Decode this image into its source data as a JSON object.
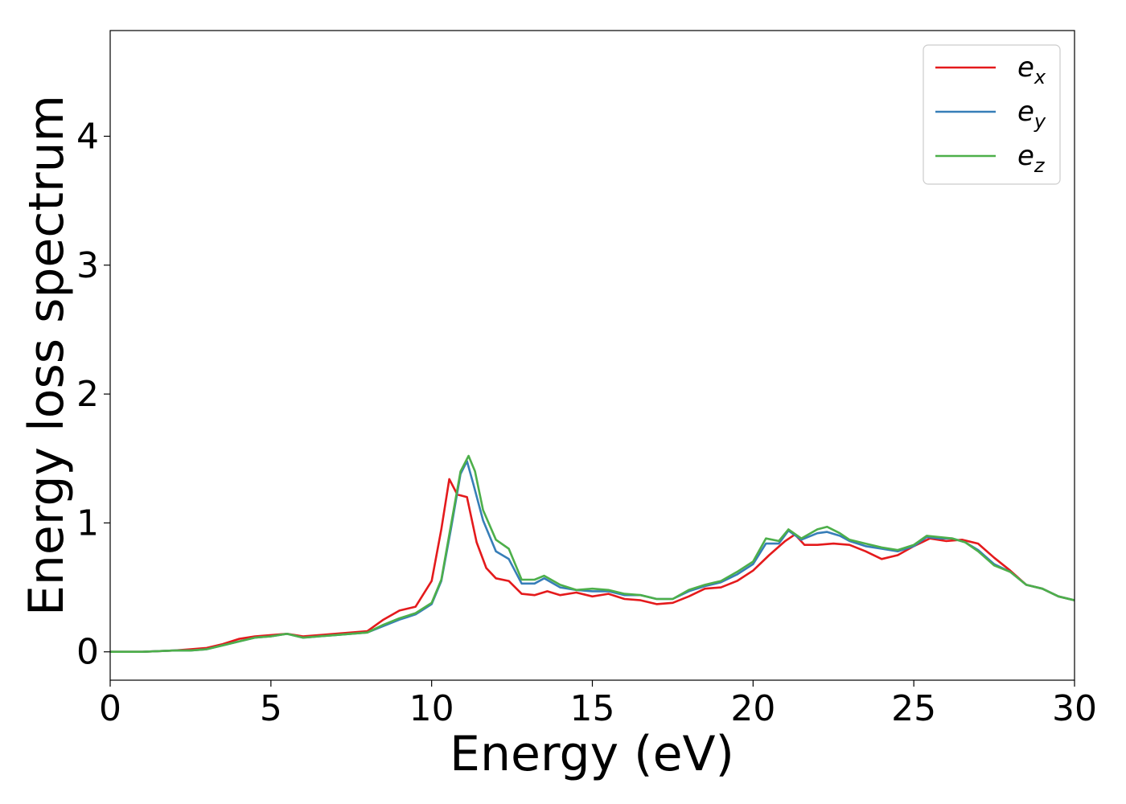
{
  "chart_data": {
    "type": "line",
    "title": "",
    "xlabel": "Energy (eV)",
    "ylabel": "Energy loss spectrum",
    "xlim": [
      0,
      30
    ],
    "ylim": [
      -0.22,
      4.82
    ],
    "xticks": [
      "0",
      "5",
      "10",
      "15",
      "20",
      "25",
      "30"
    ],
    "yticks": [
      "0",
      "1",
      "2",
      "3",
      "4"
    ],
    "grid": false,
    "legend_position": "top-right",
    "series": [
      {
        "name": "e",
        "subscript": "x",
        "color": "#e41a1c",
        "x": [
          0,
          1,
          2,
          2.5,
          3,
          3.5,
          4,
          4.5,
          5,
          5.5,
          6,
          6.5,
          7,
          7.5,
          8,
          8.5,
          9,
          9.5,
          10,
          10.3,
          10.55,
          10.8,
          11.1,
          11.4,
          11.7,
          12,
          12.4,
          12.8,
          13.2,
          13.6,
          14,
          14.5,
          15,
          15.5,
          16,
          16.5,
          17,
          17.5,
          18,
          18.5,
          19,
          19.5,
          20,
          20.5,
          21,
          21.3,
          21.6,
          22,
          22.5,
          23,
          23.5,
          24,
          24.5,
          25,
          25.5,
          26,
          26.5,
          27,
          27.5,
          28,
          28.5,
          29,
          29.5,
          30
        ],
        "y": [
          0,
          0,
          0.01,
          0.02,
          0.03,
          0.06,
          0.1,
          0.12,
          0.13,
          0.14,
          0.12,
          0.13,
          0.14,
          0.15,
          0.16,
          0.25,
          0.32,
          0.35,
          0.55,
          0.95,
          1.34,
          1.22,
          1.2,
          0.85,
          0.65,
          0.57,
          0.55,
          0.45,
          0.44,
          0.47,
          0.44,
          0.46,
          0.43,
          0.45,
          0.41,
          0.4,
          0.37,
          0.38,
          0.43,
          0.49,
          0.5,
          0.55,
          0.63,
          0.75,
          0.86,
          0.91,
          0.83,
          0.83,
          0.84,
          0.83,
          0.78,
          0.72,
          0.75,
          0.82,
          0.88,
          0.86,
          0.87,
          0.84,
          0.73,
          0.63,
          0.52,
          0.49,
          0.43,
          0.4
        ]
      },
      {
        "name": "e",
        "subscript": "y",
        "color": "#377eb8",
        "x": [
          0,
          1,
          2,
          2.5,
          3,
          3.5,
          4,
          4.5,
          5,
          5.5,
          6,
          6.5,
          7,
          7.5,
          8,
          8.5,
          9,
          9.5,
          10,
          10.3,
          10.6,
          10.9,
          11.1,
          11.3,
          11.6,
          12,
          12.4,
          12.8,
          13.2,
          13.5,
          14,
          14.5,
          15,
          15.5,
          16,
          16.5,
          17,
          17.5,
          18,
          18.5,
          19,
          19.5,
          20,
          20.4,
          20.8,
          21.1,
          21.5,
          22,
          22.3,
          22.7,
          23,
          23.5,
          24,
          24.5,
          25,
          25.4,
          25.8,
          26.2,
          26.6,
          27,
          27.5,
          28,
          28.5,
          29,
          29.5,
          30
        ],
        "y": [
          0,
          0,
          0.01,
          0.01,
          0.02,
          0.05,
          0.08,
          0.11,
          0.12,
          0.14,
          0.11,
          0.12,
          0.13,
          0.14,
          0.15,
          0.2,
          0.25,
          0.29,
          0.37,
          0.55,
          0.95,
          1.38,
          1.48,
          1.3,
          1.02,
          0.78,
          0.72,
          0.53,
          0.53,
          0.57,
          0.5,
          0.48,
          0.47,
          0.47,
          0.44,
          0.44,
          0.41,
          0.41,
          0.47,
          0.51,
          0.54,
          0.6,
          0.68,
          0.84,
          0.84,
          0.94,
          0.87,
          0.92,
          0.93,
          0.9,
          0.86,
          0.82,
          0.8,
          0.78,
          0.82,
          0.89,
          0.88,
          0.88,
          0.85,
          0.79,
          0.68,
          0.62,
          0.52,
          0.49,
          0.43,
          0.4
        ]
      },
      {
        "name": "e",
        "subscript": "z",
        "color": "#4daf4a",
        "x": [
          0,
          1,
          2,
          2.5,
          3,
          3.5,
          4,
          4.5,
          5,
          5.5,
          6,
          6.5,
          7,
          7.5,
          8,
          8.5,
          9,
          9.5,
          10,
          10.3,
          10.6,
          10.9,
          11.15,
          11.35,
          11.6,
          12,
          12.4,
          12.8,
          13.2,
          13.5,
          14,
          14.5,
          15,
          15.5,
          16,
          16.5,
          17,
          17.5,
          18,
          18.5,
          19,
          19.5,
          20,
          20.4,
          20.8,
          21.1,
          21.5,
          22,
          22.3,
          22.7,
          23,
          23.5,
          24,
          24.5,
          25,
          25.4,
          25.8,
          26.2,
          26.6,
          27,
          27.5,
          28,
          28.5,
          29,
          29.5,
          30
        ],
        "y": [
          0,
          0,
          0.01,
          0.01,
          0.02,
          0.05,
          0.08,
          0.11,
          0.12,
          0.14,
          0.11,
          0.12,
          0.13,
          0.14,
          0.15,
          0.21,
          0.26,
          0.3,
          0.38,
          0.56,
          0.98,
          1.4,
          1.52,
          1.4,
          1.1,
          0.87,
          0.8,
          0.56,
          0.56,
          0.59,
          0.52,
          0.48,
          0.49,
          0.48,
          0.45,
          0.44,
          0.41,
          0.41,
          0.48,
          0.52,
          0.55,
          0.62,
          0.7,
          0.88,
          0.86,
          0.95,
          0.88,
          0.95,
          0.97,
          0.92,
          0.87,
          0.84,
          0.81,
          0.79,
          0.83,
          0.9,
          0.89,
          0.88,
          0.85,
          0.78,
          0.67,
          0.62,
          0.52,
          0.49,
          0.43,
          0.4
        ]
      }
    ]
  }
}
